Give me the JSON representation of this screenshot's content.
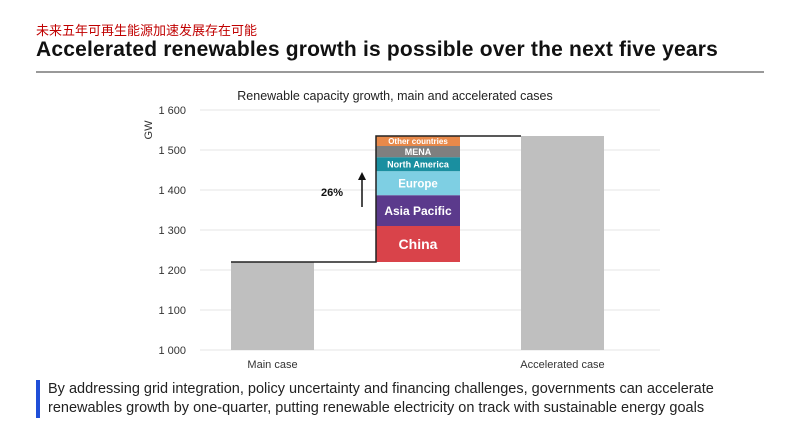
{
  "header": {
    "subtitle_cn": "未来五年可再生能源加速发展存在可能",
    "title": "Accelerated renewables growth is possible over the next five years"
  },
  "footer": {
    "text": "By addressing grid integration, policy uncertainty and financing challenges, governments can accelerate renewables growth by one-quarter, putting renewable electricity on track with sustainable energy goals",
    "accent": "#1f4fd8"
  },
  "chart_data": {
    "type": "bar",
    "title": "Renewable capacity growth, main and accelerated cases",
    "ylabel": "GW",
    "ylim": [
      1000,
      1600
    ],
    "yticks": [
      "1 000",
      "1 100",
      "1 200",
      "1 300",
      "1 400",
      "1 500",
      "1 600"
    ],
    "grid": true,
    "categories": [
      "Main case",
      "Accelerated case"
    ],
    "values": [
      1220,
      1535
    ],
    "bar_color": "#bfbfbf",
    "increment_label": "26%",
    "stack": [
      {
        "name": "China",
        "from": 1220,
        "to": 1310,
        "color": "#d9434a"
      },
      {
        "name": "Asia Pacific",
        "from": 1310,
        "to": 1387,
        "color": "#5b3a8c"
      },
      {
        "name": "Europe",
        "from": 1387,
        "to": 1447,
        "color": "#7ecfe3"
      },
      {
        "name": "North America",
        "from": 1447,
        "to": 1482,
        "color": "#1a8fa0"
      },
      {
        "name": "MENA",
        "from": 1482,
        "to": 1510,
        "color": "#7f7f7f"
      },
      {
        "name": "Other countries",
        "from": 1510,
        "to": 1535,
        "color": "#e8894a"
      }
    ]
  }
}
